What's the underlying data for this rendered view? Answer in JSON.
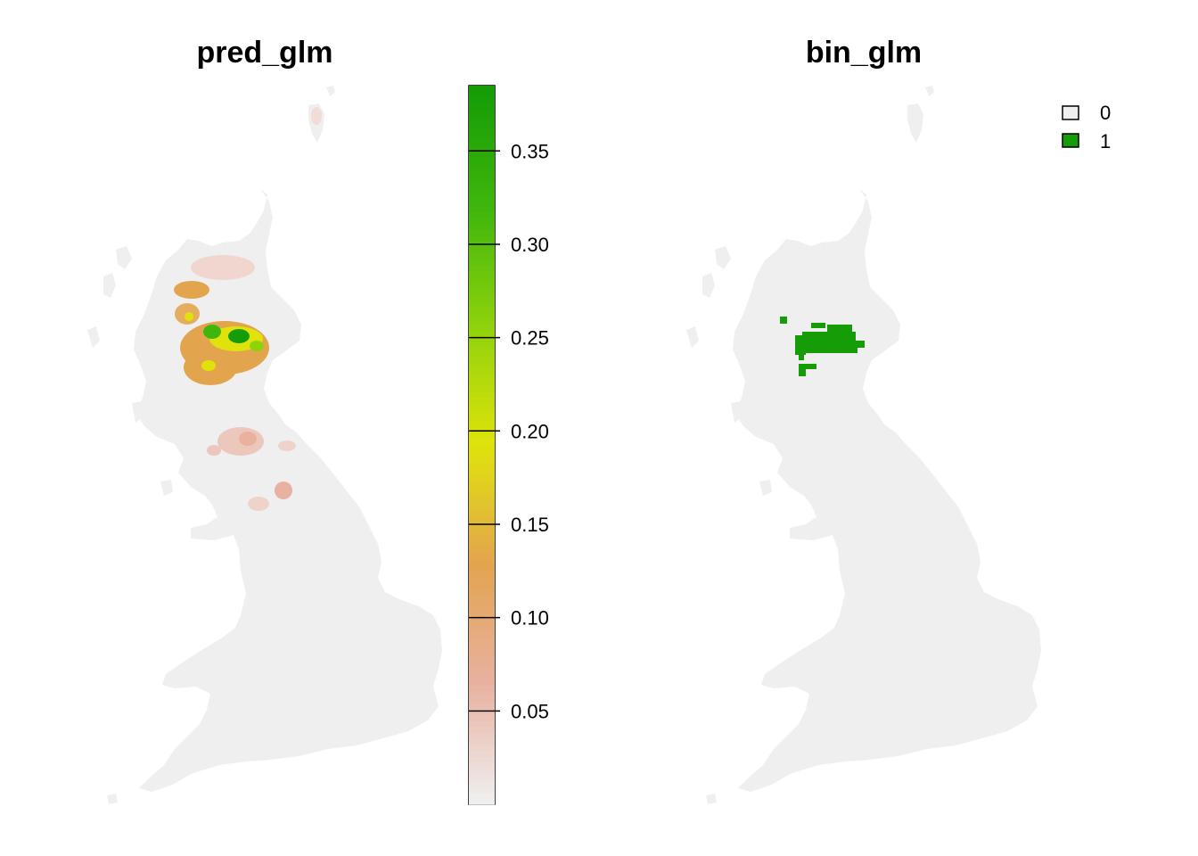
{
  "maps": [
    {
      "title": "pred_glm",
      "layer_type": "continuous probability raster"
    },
    {
      "title": "bin_glm",
      "layer_type": "binary raster"
    }
  ],
  "colorbar": {
    "range": [
      0.0,
      0.385
    ],
    "ticks": [
      "0.05",
      "0.10",
      "0.15",
      "0.20",
      "0.25",
      "0.30",
      "0.35"
    ],
    "tick_values": [
      0.05,
      0.1,
      0.15,
      0.2,
      0.25,
      0.3,
      0.35
    ],
    "colors": [
      "#efefef",
      "#e8b1a0",
      "#e3a44f",
      "#dfe30b",
      "#8fd20c",
      "#3fb60c",
      "#159c06"
    ]
  },
  "legend": {
    "items": [
      {
        "label": "0",
        "color": "#efefef"
      },
      {
        "label": "1",
        "color": "#159c06"
      }
    ]
  },
  "colors": {
    "land": "#efefef",
    "presence": "#159c06",
    "low": "#e8b8a8",
    "mid": "#e2a54e",
    "high": "#dfe30b",
    "top": "#3fb60c"
  }
}
